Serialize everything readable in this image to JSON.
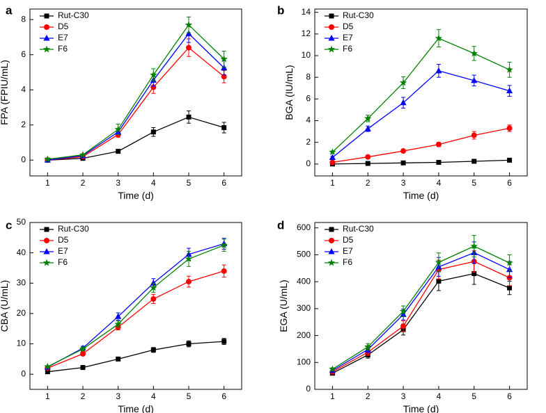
{
  "figure": {
    "panels": [
      "a",
      "b",
      "c",
      "d"
    ]
  },
  "chart_data": [
    {
      "type": "line",
      "panel_label": "a",
      "xlabel": "Time (d)",
      "ylabel": "FPA (FPIU/mL)",
      "x": [
        1,
        2,
        3,
        4,
        5,
        6
      ],
      "xlim": [
        0.5,
        6.5
      ],
      "xticks": [
        1,
        2,
        3,
        4,
        5,
        6
      ],
      "ylim": [
        -0.9,
        8.6
      ],
      "yticks": [
        0,
        2,
        4,
        6,
        8
      ],
      "legend_position": "top-left",
      "series": [
        {
          "name": "Rut-C30",
          "color": "#000000",
          "marker": "square",
          "values": [
            0.0,
            0.1,
            0.5,
            1.6,
            2.45,
            1.85
          ],
          "errors": [
            0.05,
            0.05,
            0.1,
            0.25,
            0.35,
            0.3
          ]
        },
        {
          "name": "D5",
          "color": "#ff0000",
          "marker": "circle",
          "values": [
            0.0,
            0.2,
            1.45,
            4.15,
            6.4,
            4.75
          ],
          "errors": [
            0.05,
            0.05,
            0.15,
            0.35,
            0.5,
            0.35
          ]
        },
        {
          "name": "E7",
          "color": "#0000ff",
          "marker": "triangle",
          "values": [
            0.0,
            0.25,
            1.6,
            4.55,
            7.2,
            5.25
          ],
          "errors": [
            0.05,
            0.05,
            0.15,
            0.35,
            0.5,
            0.4
          ]
        },
        {
          "name": "F6",
          "color": "#008000",
          "marker": "star",
          "values": [
            0.05,
            0.3,
            1.75,
            4.85,
            7.7,
            5.75
          ],
          "errors": [
            0.05,
            0.05,
            0.3,
            0.35,
            0.45,
            0.45
          ]
        }
      ]
    },
    {
      "type": "line",
      "panel_label": "b",
      "xlabel": "Time (d)",
      "ylabel": "BGA (IU/mL)",
      "x": [
        1,
        2,
        3,
        4,
        5,
        6
      ],
      "xlim": [
        0.5,
        6.5
      ],
      "xticks": [
        1,
        2,
        3,
        4,
        5,
        6
      ],
      "ylim": [
        -1.1,
        14.3
      ],
      "yticks": [
        0,
        2,
        4,
        6,
        8,
        10,
        12,
        14
      ],
      "legend_position": "top-left",
      "series": [
        {
          "name": "Rut-C30",
          "color": "#000000",
          "marker": "square",
          "values": [
            0.0,
            0.05,
            0.1,
            0.15,
            0.25,
            0.35
          ],
          "errors": [
            0.02,
            0.02,
            0.03,
            0.05,
            0.05,
            0.05
          ]
        },
        {
          "name": "D5",
          "color": "#ff0000",
          "marker": "circle",
          "values": [
            0.15,
            0.65,
            1.2,
            1.8,
            2.65,
            3.3
          ],
          "errors": [
            0.05,
            0.05,
            0.1,
            0.2,
            0.35,
            0.3
          ]
        },
        {
          "name": "E7",
          "color": "#0000ff",
          "marker": "triangle",
          "values": [
            0.6,
            3.25,
            5.65,
            8.6,
            7.7,
            6.75
          ],
          "errors": [
            0.1,
            0.25,
            0.5,
            0.6,
            0.5,
            0.5
          ]
        },
        {
          "name": "F6",
          "color": "#008000",
          "marker": "star",
          "values": [
            1.1,
            4.2,
            7.5,
            11.6,
            10.2,
            8.7
          ],
          "errors": [
            0.1,
            0.3,
            0.55,
            0.8,
            0.65,
            0.7
          ]
        }
      ]
    },
    {
      "type": "line",
      "panel_label": "c",
      "xlabel": "Time (d)",
      "ylabel": "CBA (U/mL)",
      "x": [
        1,
        2,
        3,
        4,
        5,
        6
      ],
      "xlim": [
        0.5,
        6.5
      ],
      "xticks": [
        1,
        2,
        3,
        4,
        5,
        6
      ],
      "ylim": [
        -5,
        50
      ],
      "yticks": [
        0,
        10,
        20,
        30,
        40,
        50
      ],
      "legend_position": "top-left",
      "series": [
        {
          "name": "Rut-C30",
          "color": "#000000",
          "marker": "square",
          "values": [
            0.8,
            2.2,
            5.0,
            8.0,
            10.0,
            10.8
          ],
          "errors": [
            0.2,
            0.3,
            0.4,
            0.8,
            1.0,
            1.0
          ]
        },
        {
          "name": "D5",
          "color": "#ff0000",
          "marker": "circle",
          "values": [
            2.0,
            6.7,
            15.5,
            24.8,
            30.5,
            34.0
          ],
          "errors": [
            0.3,
            0.5,
            0.9,
            1.5,
            1.8,
            2.0
          ]
        },
        {
          "name": "E7",
          "color": "#0000ff",
          "marker": "triangle",
          "values": [
            2.3,
            8.6,
            19.0,
            30.0,
            39.5,
            43.0
          ],
          "errors": [
            0.3,
            0.6,
            1.2,
            1.5,
            2.0,
            1.8
          ]
        },
        {
          "name": "F6",
          "color": "#008000",
          "marker": "star",
          "values": [
            2.5,
            8.3,
            16.5,
            28.5,
            38.0,
            42.5
          ],
          "errors": [
            0.3,
            0.6,
            1.0,
            1.5,
            2.5,
            2.0
          ]
        }
      ]
    },
    {
      "type": "line",
      "panel_label": "d",
      "xlabel": "Time (d)",
      "ylabel": "EGA (U/mL)",
      "x": [
        1,
        2,
        3,
        4,
        5,
        6
      ],
      "xlim": [
        0.5,
        6.5
      ],
      "xticks": [
        1,
        2,
        3,
        4,
        5,
        6
      ],
      "ylim": [
        0,
        620
      ],
      "yticks": [
        0,
        100,
        200,
        300,
        400,
        500,
        600
      ],
      "legend_position": "top-left",
      "series": [
        {
          "name": "Rut-C30",
          "color": "#000000",
          "marker": "square",
          "values": [
            60,
            128,
            222,
            402,
            430,
            377
          ],
          "errors": [
            5,
            12,
            20,
            35,
            40,
            25
          ]
        },
        {
          "name": "D5",
          "color": "#ff0000",
          "marker": "circle",
          "values": [
            65,
            138,
            235,
            445,
            475,
            415
          ],
          "errors": [
            5,
            12,
            20,
            35,
            40,
            30
          ]
        },
        {
          "name": "E7",
          "color": "#0000ff",
          "marker": "triangle",
          "values": [
            70,
            148,
            278,
            455,
            508,
            445
          ],
          "errors": [
            5,
            12,
            20,
            35,
            40,
            30
          ]
        },
        {
          "name": "F6",
          "color": "#008000",
          "marker": "star",
          "values": [
            75,
            158,
            290,
            472,
            532,
            470
          ],
          "errors": [
            5,
            12,
            20,
            35,
            40,
            30
          ]
        }
      ]
    }
  ]
}
